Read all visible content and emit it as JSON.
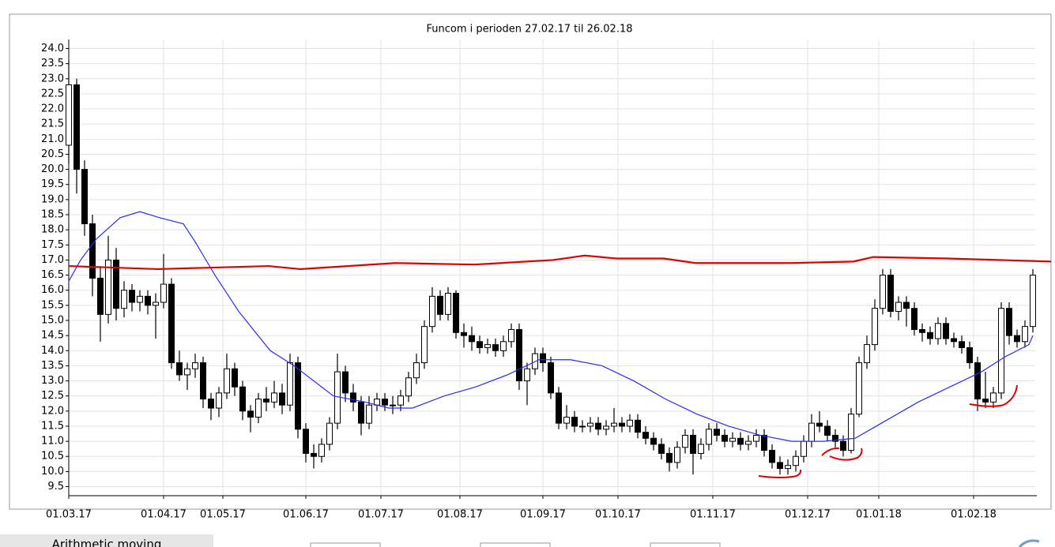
{
  "chart_data": {
    "type": "candlestick",
    "title": "Funcom i perioden 27.02.17 til 26.02.18",
    "xlim": [
      -1,
      245
    ],
    "xticks": [
      {
        "value": 0,
        "label": "01.03.17"
      },
      {
        "value": 24,
        "label": "01.04.17"
      },
      {
        "value": 39,
        "label": "01.05.17"
      },
      {
        "value": 60,
        "label": "01.06.17"
      },
      {
        "value": 79,
        "label": "01.07.17"
      },
      {
        "value": 99,
        "label": "01.08.17"
      },
      {
        "value": 120,
        "label": "01.09.17"
      },
      {
        "value": 139,
        "label": "01.10.17"
      },
      {
        "value": 163,
        "label": "01.11.17"
      },
      {
        "value": 187,
        "label": "01.12.17"
      },
      {
        "value": 205,
        "label": "01.01.18"
      },
      {
        "value": 229,
        "label": "01.02.18"
      }
    ],
    "ylim": [
      9.2,
      24.3
    ],
    "yticks": [
      9.5,
      {
        "value": 10,
        "label": "10.0"
      },
      10.5,
      {
        "value": 11,
        "label": "11.0"
      },
      11.5,
      {
        "value": 12,
        "label": "12.0"
      },
      12.5,
      {
        "value": 13,
        "label": "13.0"
      },
      13.5,
      {
        "value": 14,
        "label": "14.0"
      },
      14.5,
      {
        "value": 15,
        "label": "15.0"
      },
      15.5,
      {
        "value": 16,
        "label": "16.0"
      },
      16.5,
      {
        "value": 17,
        "label": "17.0"
      },
      17.5,
      {
        "value": 18,
        "label": "18.0"
      },
      18.5,
      {
        "value": 19,
        "label": "19.0"
      },
      19.5,
      {
        "value": 20,
        "label": "20.0"
      },
      20.5,
      {
        "value": 21,
        "label": "21.0"
      },
      21.5,
      {
        "value": 22,
        "label": "22.0"
      },
      22.5,
      {
        "value": 23,
        "label": "23.0"
      },
      23.5,
      {
        "value": 24,
        "label": "24.0"
      }
    ],
    "grid": true,
    "rising_color": "#ffffff",
    "falling_color": "#000000",
    "x": [
      0,
      2,
      4,
      6,
      8,
      10,
      12,
      14,
      16,
      18,
      20,
      22,
      24,
      26,
      28,
      30,
      32,
      34,
      36,
      38,
      40,
      42,
      44,
      46,
      48,
      50,
      52,
      54,
      56,
      58,
      60,
      62,
      64,
      66,
      68,
      70,
      72,
      74,
      76,
      78,
      80,
      82,
      84,
      86,
      88,
      90,
      92,
      94,
      96,
      98,
      100,
      102,
      104,
      106,
      108,
      110,
      112,
      114,
      116,
      118,
      120,
      122,
      124,
      126,
      128,
      130,
      132,
      134,
      136,
      138,
      140,
      142,
      144,
      146,
      148,
      150,
      152,
      154,
      156,
      158,
      160,
      162,
      164,
      166,
      168,
      170,
      172,
      174,
      176,
      178,
      180,
      182,
      184,
      186,
      188,
      190,
      192,
      194,
      196,
      198,
      200,
      202,
      204,
      206,
      208,
      210,
      212,
      214,
      216,
      218,
      220,
      222,
      224,
      226,
      228,
      230,
      232,
      234,
      236,
      238,
      240,
      242,
      244
    ],
    "open": [
      20.8,
      22.8,
      20.0,
      18.2,
      16.4,
      15.2,
      17.0,
      15.4,
      16.0,
      15.6,
      15.8,
      15.5,
      15.6,
      16.2,
      13.6,
      13.2,
      13.4,
      13.6,
      12.4,
      12.1,
      12.6,
      13.4,
      12.8,
      12.0,
      11.8,
      12.4,
      12.3,
      12.6,
      12.2,
      13.6,
      11.4,
      10.6,
      10.5,
      10.9,
      11.6,
      13.3,
      12.6,
      12.3,
      11.6,
      12.2,
      12.4,
      12.2,
      12.2,
      12.5,
      13.1,
      13.6,
      14.8,
      15.8,
      15.2,
      15.9,
      14.6,
      14.5,
      14.3,
      14.1,
      14.2,
      14.0,
      14.3,
      14.7,
      13.0,
      13.4,
      13.9,
      13.6,
      12.6,
      11.6,
      11.8,
      11.5,
      11.5,
      11.6,
      11.4,
      11.5,
      11.6,
      11.5,
      11.7,
      11.3,
      11.1,
      10.9,
      10.6,
      10.3,
      10.8,
      11.2,
      10.6,
      10.9,
      11.4,
      11.2,
      11.0,
      11.1,
      10.9,
      11.0,
      11.2,
      10.7,
      10.3,
      10.1,
      10.2,
      10.5,
      11.0,
      11.6,
      11.5,
      11.2,
      11.0,
      10.7,
      11.9,
      13.6,
      14.2,
      15.4,
      16.5,
      15.3,
      15.6,
      15.4,
      14.7,
      14.6,
      14.4,
      14.9,
      14.4,
      14.3,
      14.1,
      13.6,
      12.4,
      12.3,
      12.6,
      15.4,
      14.5,
      14.3,
      14.8
    ],
    "high": [
      23.6,
      23.0,
      20.3,
      18.5,
      16.8,
      17.8,
      17.4,
      16.3,
      16.2,
      16.0,
      16.0,
      15.9,
      17.2,
      16.4,
      14.0,
      13.6,
      13.9,
      13.8,
      12.6,
      12.8,
      13.9,
      13.6,
      13.0,
      12.2,
      12.6,
      12.8,
      13.0,
      12.9,
      13.9,
      13.8,
      11.6,
      10.9,
      11.1,
      11.8,
      13.9,
      13.5,
      12.9,
      12.5,
      12.5,
      12.6,
      12.6,
      12.5,
      12.7,
      13.3,
      13.9,
      15.0,
      16.1,
      16.0,
      16.1,
      16.0,
      14.9,
      14.8,
      14.5,
      14.4,
      14.4,
      14.5,
      14.9,
      14.9,
      13.6,
      14.1,
      14.1,
      13.8,
      12.8,
      12.2,
      12.0,
      11.7,
      11.8,
      11.8,
      11.7,
      12.1,
      11.8,
      11.9,
      11.9,
      11.5,
      11.3,
      11.1,
      10.8,
      11.0,
      11.4,
      11.4,
      11.1,
      11.6,
      11.6,
      11.4,
      11.3,
      11.3,
      11.2,
      11.4,
      11.4,
      10.9,
      10.5,
      10.4,
      10.7,
      11.2,
      11.9,
      12.0,
      11.7,
      11.4,
      11.2,
      12.1,
      13.8,
      14.5,
      15.7,
      16.7,
      16.7,
      15.8,
      15.8,
      15.6,
      14.9,
      14.8,
      15.1,
      15.1,
      14.6,
      14.5,
      14.3,
      13.8,
      13.3,
      12.8,
      15.6,
      15.6,
      14.7,
      15.0,
      16.7
    ],
    "low": [
      20.2,
      19.2,
      17.8,
      15.8,
      14.3,
      14.9,
      15.0,
      15.1,
      15.3,
      15.3,
      15.2,
      14.4,
      15.4,
      13.4,
      13.0,
      12.7,
      13.1,
      12.1,
      11.7,
      11.8,
      12.4,
      12.5,
      11.7,
      11.3,
      11.6,
      12.0,
      12.1,
      11.9,
      12.0,
      11.1,
      10.3,
      10.1,
      10.3,
      10.7,
      11.4,
      12.3,
      12.0,
      11.2,
      11.4,
      12.0,
      12.0,
      11.9,
      12.0,
      12.3,
      12.9,
      13.4,
      14.6,
      15.0,
      15.0,
      14.4,
      14.1,
      14.0,
      13.9,
      13.9,
      13.8,
      13.8,
      14.1,
      12.7,
      12.2,
      13.2,
      13.3,
      12.4,
      11.4,
      11.4,
      11.3,
      11.3,
      11.3,
      11.2,
      11.2,
      11.3,
      11.3,
      11.3,
      11.1,
      10.9,
      10.7,
      10.4,
      10.0,
      10.1,
      10.6,
      9.9,
      10.4,
      10.7,
      11.0,
      10.8,
      10.8,
      10.7,
      10.7,
      10.8,
      10.5,
      10.1,
      9.9,
      9.9,
      10.0,
      10.3,
      10.8,
      11.3,
      11.0,
      10.8,
      10.5,
      10.6,
      11.8,
      13.4,
      14.0,
      15.2,
      15.1,
      15.0,
      14.8,
      14.5,
      14.3,
      14.2,
      14.2,
      14.2,
      14.1,
      13.9,
      13.4,
      12.0,
      12.1,
      12.1,
      12.4,
      14.2,
      14.1,
      14.1,
      14.6
    ],
    "close": [
      22.8,
      20.0,
      18.2,
      16.4,
      15.2,
      17.0,
      15.4,
      16.0,
      15.6,
      15.8,
      15.5,
      15.6,
      16.2,
      13.6,
      13.2,
      13.4,
      13.6,
      12.4,
      12.1,
      12.6,
      13.4,
      12.8,
      12.0,
      11.8,
      12.4,
      12.3,
      12.6,
      12.2,
      13.6,
      11.4,
      10.6,
      10.5,
      10.9,
      11.6,
      13.3,
      12.6,
      12.3,
      11.6,
      12.2,
      12.4,
      12.2,
      12.2,
      12.5,
      13.1,
      13.6,
      14.8,
      15.8,
      15.2,
      15.9,
      14.6,
      14.5,
      14.3,
      14.1,
      14.2,
      14.0,
      14.3,
      14.7,
      13.0,
      13.4,
      13.9,
      13.6,
      12.6,
      11.6,
      11.8,
      11.5,
      11.5,
      11.6,
      11.4,
      11.5,
      11.6,
      11.5,
      11.7,
      11.3,
      11.1,
      10.9,
      10.6,
      10.3,
      10.8,
      11.2,
      10.6,
      10.9,
      11.4,
      11.2,
      11.0,
      11.1,
      10.9,
      11.0,
      11.2,
      10.7,
      10.3,
      10.1,
      10.2,
      10.5,
      11.0,
      11.6,
      11.5,
      11.2,
      11.0,
      10.7,
      11.9,
      13.6,
      14.2,
      15.4,
      16.5,
      15.3,
      15.6,
      15.4,
      14.7,
      14.6,
      14.4,
      14.9,
      14.4,
      14.3,
      14.1,
      13.6,
      12.4,
      12.3,
      12.6,
      15.4,
      14.5,
      14.3,
      14.8,
      16.5
    ],
    "moving_average": {
      "color": "#2a2aff",
      "x": [
        0,
        3,
        7,
        13,
        18,
        23,
        29,
        32,
        37,
        43,
        51,
        57,
        63,
        67,
        75,
        81,
        87,
        95,
        103,
        111,
        119,
        127,
        135,
        143,
        151,
        159,
        167,
        175,
        183,
        191,
        199,
        207,
        215,
        223,
        231,
        237,
        243,
        244
      ],
      "values": [
        16.3,
        17.0,
        17.7,
        18.4,
        18.6,
        18.4,
        18.2,
        17.6,
        16.5,
        15.3,
        14.0,
        13.5,
        12.9,
        12.5,
        12.3,
        12.1,
        12.1,
        12.5,
        12.8,
        13.2,
        13.7,
        13.7,
        13.5,
        13.0,
        12.4,
        11.9,
        11.5,
        11.2,
        11.0,
        11.0,
        11.1,
        11.7,
        12.3,
        12.8,
        13.3,
        13.8,
        14.2,
        14.5
      ]
    },
    "annotation_line": {
      "color": "#e00000",
      "x": [
        0,
        22.6,
        50.6,
        58.6,
        82.6,
        102.6,
        122.6,
        130.6,
        138.6,
        150.6,
        158.6,
        182.6,
        198.6,
        203.6,
        222.6,
        248.6
      ],
      "values": [
        16.8,
        16.7,
        16.8,
        16.7,
        16.9,
        16.85,
        17.0,
        17.15,
        17.05,
        17.05,
        16.9,
        16.9,
        16.95,
        17.1,
        17.05,
        16.95
      ]
    }
  },
  "controls": {
    "label": "Arithmetic moving"
  }
}
